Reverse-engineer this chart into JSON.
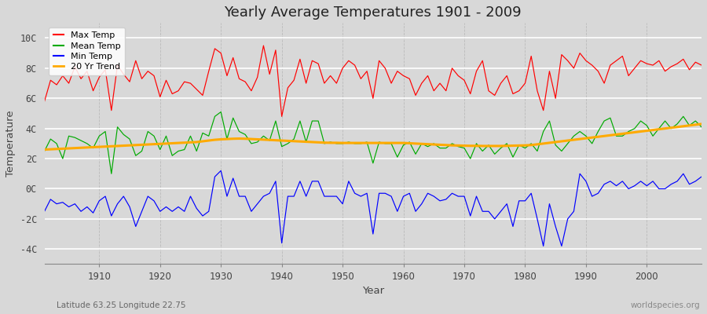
{
  "title": "Yearly Average Temperatures 1901 - 2009",
  "xlabel": "Year",
  "ylabel": "Temperature",
  "subtitle_left": "Latitude 63.25 Longitude 22.75",
  "subtitle_right": "worldspecies.org",
  "year_start": 1901,
  "year_end": 2009,
  "ylim": [
    -5,
    11
  ],
  "yticks": [
    -4,
    -2,
    0,
    2,
    4,
    6,
    8,
    10
  ],
  "ytick_labels": [
    "-4C",
    "-2C",
    "0C",
    "2C",
    "4C",
    "6C",
    "8C",
    "10C"
  ],
  "xticks": [
    1910,
    1920,
    1930,
    1940,
    1950,
    1960,
    1970,
    1980,
    1990,
    2000
  ],
  "colors": {
    "max": "#ff0000",
    "mean": "#00aa00",
    "min": "#0000ff",
    "trend": "#ffaa00",
    "background": "#d8d8d8",
    "plot_bg": "#d8d8d8"
  },
  "legend_labels": [
    "Max Temp",
    "Mean Temp",
    "Min Temp",
    "20 Yr Trend"
  ],
  "max_temps": [
    5.8,
    7.2,
    6.9,
    7.5,
    7.0,
    8.1,
    7.3,
    7.8,
    6.5,
    7.4,
    7.9,
    5.2,
    8.2,
    7.6,
    7.1,
    8.5,
    7.3,
    7.8,
    7.5,
    6.1,
    7.2,
    6.3,
    6.5,
    7.1,
    7.0,
    6.6,
    6.2,
    7.8,
    9.3,
    9.0,
    7.5,
    8.7,
    7.3,
    7.1,
    6.5,
    7.4,
    9.5,
    7.6,
    9.2,
    4.8,
    6.7,
    7.2,
    8.6,
    7.0,
    8.5,
    8.3,
    7.0,
    7.5,
    7.0,
    8.0,
    8.5,
    8.2,
    7.3,
    7.8,
    6.0,
    8.5,
    8.0,
    7.0,
    7.8,
    7.5,
    7.3,
    6.2,
    7.0,
    7.5,
    6.5,
    7.0,
    6.5,
    8.0,
    7.5,
    7.2,
    6.3,
    7.8,
    8.5,
    6.5,
    6.2,
    7.0,
    7.5,
    6.3,
    6.5,
    7.0,
    8.8,
    6.5,
    5.2,
    7.8,
    6.0,
    8.9,
    8.5,
    8.0,
    9.0,
    8.5,
    8.2,
    7.8,
    7.0,
    8.2,
    8.5,
    8.8,
    7.5,
    8.0,
    8.5,
    8.3,
    8.2,
    8.5,
    7.8,
    8.1,
    8.3,
    8.6,
    7.9,
    8.4,
    8.2
  ],
  "mean_temps": [
    2.5,
    3.3,
    3.0,
    2.0,
    3.5,
    3.4,
    3.2,
    3.0,
    2.7,
    3.5,
    3.8,
    1.0,
    4.1,
    3.6,
    3.3,
    2.2,
    2.5,
    3.8,
    3.5,
    2.6,
    3.5,
    2.2,
    2.5,
    2.6,
    3.5,
    2.5,
    3.7,
    3.5,
    4.8,
    5.1,
    3.3,
    4.7,
    3.8,
    3.6,
    3.0,
    3.1,
    3.5,
    3.2,
    4.5,
    2.8,
    3.0,
    3.3,
    4.5,
    3.1,
    4.5,
    4.5,
    3.0,
    3.1,
    3.0,
    3.0,
    3.1,
    3.0,
    3.0,
    3.1,
    1.7,
    3.1,
    3.0,
    3.0,
    2.1,
    2.9,
    3.1,
    2.3,
    3.0,
    2.8,
    3.0,
    2.7,
    2.7,
    3.0,
    2.8,
    2.7,
    2.0,
    3.0,
    2.5,
    2.9,
    2.3,
    2.7,
    3.0,
    2.1,
    2.9,
    2.7,
    3.0,
    2.5,
    3.8,
    4.5,
    2.9,
    2.5,
    3.0,
    3.5,
    3.8,
    3.5,
    3.0,
    3.8,
    4.5,
    4.7,
    3.5,
    3.5,
    3.8,
    4.0,
    4.5,
    4.2,
    3.5,
    4.0,
    4.5,
    4.0,
    4.3,
    4.8,
    4.2,
    4.5,
    4.1
  ],
  "min_temps": [
    -1.5,
    -0.7,
    -1.0,
    -0.9,
    -1.2,
    -1.0,
    -1.5,
    -1.2,
    -1.6,
    -0.8,
    -0.5,
    -1.8,
    -1.0,
    -0.5,
    -1.2,
    -2.5,
    -1.5,
    -0.5,
    -0.8,
    -1.5,
    -1.2,
    -1.5,
    -1.2,
    -1.5,
    -0.5,
    -1.3,
    -1.8,
    -1.5,
    0.8,
    1.2,
    -0.5,
    0.7,
    -0.5,
    -0.5,
    -1.5,
    -1.0,
    -0.5,
    -0.3,
    0.5,
    -3.6,
    -0.5,
    -0.5,
    0.5,
    -0.5,
    0.5,
    0.5,
    -0.5,
    -0.5,
    -0.5,
    -1.0,
    0.5,
    -0.3,
    -0.5,
    -0.3,
    -3.0,
    -0.3,
    -0.3,
    -0.5,
    -1.5,
    -0.5,
    -0.3,
    -1.5,
    -1.0,
    -0.3,
    -0.5,
    -0.8,
    -0.7,
    -0.3,
    -0.5,
    -0.5,
    -1.8,
    -0.5,
    -1.5,
    -1.5,
    -2.0,
    -1.5,
    -1.0,
    -2.5,
    -0.8,
    -0.8,
    -0.3,
    -2.0,
    -3.8,
    -1.0,
    -2.5,
    -3.8,
    -2.0,
    -1.5,
    1.0,
    0.5,
    -0.5,
    -0.3,
    0.3,
    0.5,
    0.2,
    0.5,
    0.0,
    0.2,
    0.5,
    0.2,
    0.5,
    0.0,
    0.0,
    0.3,
    0.5,
    1.0,
    0.3,
    0.5,
    0.8
  ],
  "trend_temps": [
    2.6,
    2.62,
    2.64,
    2.66,
    2.68,
    2.7,
    2.72,
    2.74,
    2.76,
    2.78,
    2.8,
    2.82,
    2.84,
    2.86,
    2.88,
    2.9,
    2.92,
    2.94,
    2.96,
    2.98,
    3.0,
    3.02,
    3.04,
    3.06,
    3.08,
    3.1,
    3.15,
    3.2,
    3.25,
    3.28,
    3.3,
    3.32,
    3.33,
    3.32,
    3.3,
    3.28,
    3.26,
    3.24,
    3.22,
    3.2,
    3.18,
    3.16,
    3.14,
    3.12,
    3.1,
    3.08,
    3.06,
    3.05,
    3.05,
    3.04,
    3.04,
    3.04,
    3.04,
    3.04,
    3.04,
    3.04,
    3.04,
    3.04,
    3.04,
    3.04,
    3.02,
    3.0,
    2.98,
    2.96,
    2.94,
    2.92,
    2.9,
    2.88,
    2.87,
    2.86,
    2.85,
    2.85,
    2.84,
    2.84,
    2.84,
    2.84,
    2.85,
    2.86,
    2.87,
    2.88,
    2.9,
    2.95,
    3.0,
    3.05,
    3.1,
    3.15,
    3.2,
    3.25,
    3.3,
    3.35,
    3.4,
    3.45,
    3.5,
    3.55,
    3.6,
    3.65,
    3.7,
    3.75,
    3.8,
    3.85,
    3.9,
    3.95,
    4.0,
    4.05,
    4.1,
    4.15,
    4.2,
    4.25,
    4.3
  ]
}
